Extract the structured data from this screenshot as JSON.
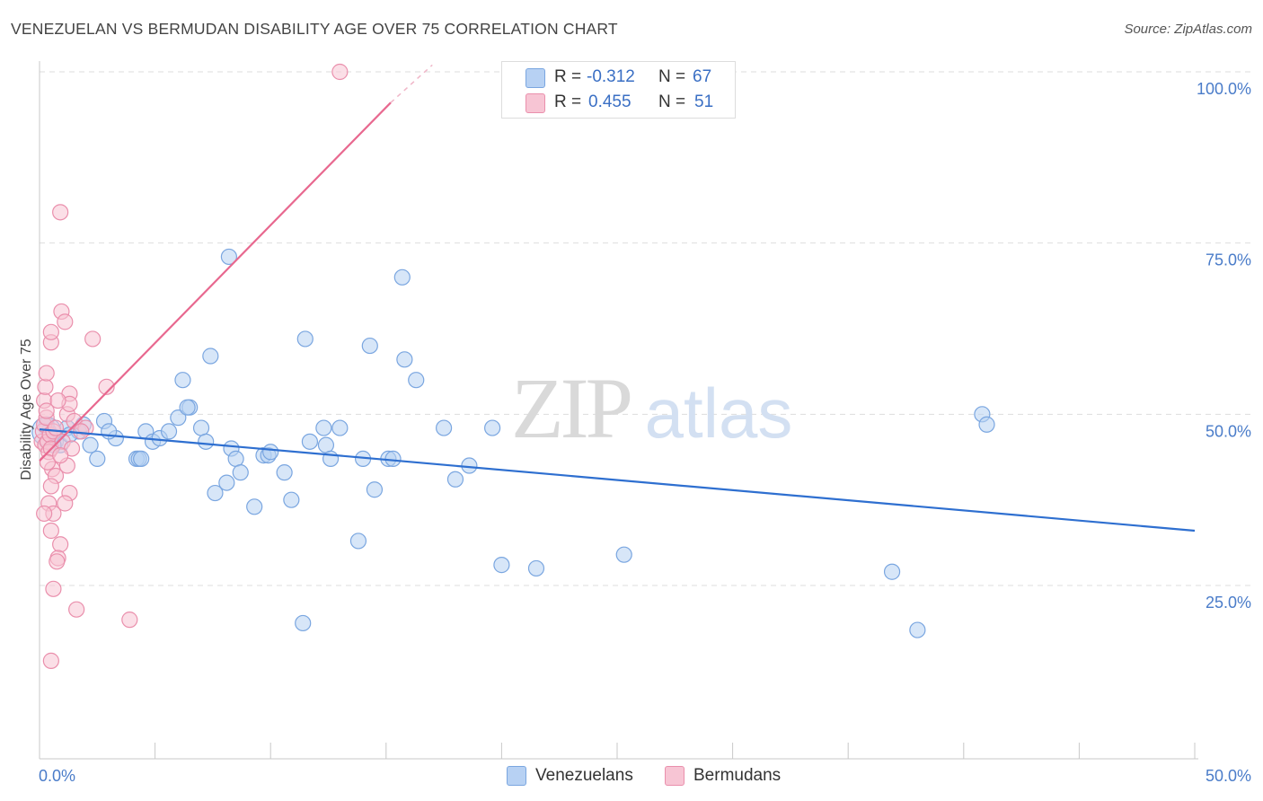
{
  "title": "VENEZUELAN VS BERMUDAN DISABILITY AGE OVER 75 CORRELATION CHART",
  "source": "Source: ZipAtlas.com",
  "watermark": {
    "zip": "ZIP",
    "atlas": "atlas"
  },
  "colors": {
    "blue_fill": "#b7d1f3",
    "blue_stroke": "#7aa6e0",
    "blue_line": "#2e6fd0",
    "pink_fill": "#f7c5d4",
    "pink_stroke": "#ea8fac",
    "pink_line": "#e8688f",
    "axis_label": "#4a7cc9",
    "grid": "#dddddd"
  },
  "legend": {
    "rows": [
      {
        "r_label": "R = ",
        "r_value": "-0.312",
        "n_label": "N = ",
        "n_value": "67",
        "color": "#b7d1f3"
      },
      {
        "r_label": "R = ",
        "r_value": "0.455",
        "n_label": "N = ",
        "n_value": "51",
        "color": "#f7c5d4"
      }
    ]
  },
  "bottom_legend": [
    {
      "label": "Venezuelans",
      "color": "#b7d1f3"
    },
    {
      "label": "Bermudans",
      "color": "#f7c5d4"
    }
  ],
  "chart_data": {
    "type": "scatter",
    "title": "VENEZUELAN VS BERMUDAN DISABILITY AGE OVER 75 CORRELATION CHART",
    "xlabel": "",
    "ylabel": "Disability Age Over 75",
    "xlim": [
      0,
      50
    ],
    "ylim": [
      0,
      105
    ],
    "x_tick_labels": [
      "0.0%",
      "50.0%"
    ],
    "y_ticks": [
      25,
      50,
      75,
      100
    ],
    "y_tick_labels": [
      "25.0%",
      "50.0%",
      "75.0%",
      "100.0%"
    ],
    "grid": true,
    "legend_position": "top-center",
    "series": [
      {
        "name": "Venezuelans",
        "r": -0.312,
        "n": 67,
        "trend": {
          "x0": 0,
          "y0": 47.8,
          "x1": 50,
          "y1": 33.0
        },
        "points": [
          [
            0.4,
            47.5
          ],
          [
            0.7,
            46.0
          ],
          [
            0.9,
            45.5
          ],
          [
            1.2,
            48.0
          ],
          [
            1.7,
            47.5
          ],
          [
            2.2,
            45.5
          ],
          [
            2.8,
            49.0
          ],
          [
            3.3,
            46.5
          ],
          [
            4.2,
            43.5
          ],
          [
            4.3,
            43.5
          ],
          [
            4.4,
            43.5
          ],
          [
            4.6,
            47.5
          ],
          [
            4.9,
            46.0
          ],
          [
            5.2,
            46.5
          ],
          [
            6.0,
            49.5
          ],
          [
            5.6,
            47.5
          ],
          [
            6.2,
            55.0
          ],
          [
            6.5,
            51.0
          ],
          [
            7.0,
            48.0
          ],
          [
            7.2,
            46.0
          ],
          [
            7.4,
            58.5
          ],
          [
            8.1,
            40.0
          ],
          [
            8.3,
            45.0
          ],
          [
            8.5,
            43.5
          ],
          [
            8.7,
            41.5
          ],
          [
            9.3,
            36.5
          ],
          [
            9.7,
            44.0
          ],
          [
            9.9,
            44.0
          ],
          [
            10.0,
            44.5
          ],
          [
            10.6,
            41.5
          ],
          [
            10.9,
            37.5
          ],
          [
            11.4,
            19.5
          ],
          [
            11.5,
            61.0
          ],
          [
            12.3,
            48.0
          ],
          [
            12.4,
            45.5
          ],
          [
            12.6,
            43.5
          ],
          [
            13.0,
            48.0
          ],
          [
            13.8,
            31.5
          ],
          [
            14.0,
            43.5
          ],
          [
            14.3,
            60.0
          ],
          [
            14.5,
            39.0
          ],
          [
            15.1,
            43.5
          ],
          [
            15.3,
            43.5
          ],
          [
            15.7,
            70.0
          ],
          [
            15.8,
            58.0
          ],
          [
            16.3,
            55.0
          ],
          [
            17.5,
            48.0
          ],
          [
            18.0,
            40.5
          ],
          [
            18.6,
            42.5
          ],
          [
            19.6,
            48.0
          ],
          [
            20.0,
            28.0
          ],
          [
            21.5,
            27.5
          ],
          [
            25.3,
            29.5
          ],
          [
            36.9,
            27.0
          ],
          [
            38.0,
            18.5
          ],
          [
            40.8,
            50.0
          ],
          [
            41.0,
            48.5
          ],
          [
            8.2,
            73.0
          ],
          [
            0.6,
            45.5
          ],
          [
            1.3,
            47.0
          ],
          [
            0.3,
            48.5
          ],
          [
            3.0,
            47.5
          ],
          [
            6.4,
            51.0
          ],
          [
            2.5,
            43.5
          ],
          [
            7.6,
            38.5
          ],
          [
            11.7,
            46.0
          ],
          [
            1.9,
            48.5
          ]
        ]
      },
      {
        "name": "Bermudans",
        "r": 0.455,
        "n": 51,
        "trend": {
          "x0": 0,
          "y0": 43.2,
          "x1": 15.2,
          "y1": 95.5,
          "dashed_to": {
            "x": 17.0,
            "y": 101.0
          }
        },
        "points": [
          [
            0.1,
            46.0
          ],
          [
            0.15,
            47.5
          ],
          [
            0.2,
            48.5
          ],
          [
            0.25,
            45.5
          ],
          [
            0.3,
            49.5
          ],
          [
            0.2,
            52.0
          ],
          [
            0.25,
            54.0
          ],
          [
            0.3,
            56.0
          ],
          [
            0.35,
            46.0
          ],
          [
            0.4,
            44.5
          ],
          [
            0.45,
            47.0
          ],
          [
            0.5,
            45.0
          ],
          [
            0.6,
            47.5
          ],
          [
            0.55,
            42.0
          ],
          [
            0.7,
            41.0
          ],
          [
            0.5,
            39.5
          ],
          [
            0.4,
            37.0
          ],
          [
            0.6,
            35.5
          ],
          [
            0.5,
            33.0
          ],
          [
            0.9,
            31.0
          ],
          [
            0.8,
            29.0
          ],
          [
            0.75,
            28.5
          ],
          [
            0.6,
            24.5
          ],
          [
            1.6,
            21.5
          ],
          [
            0.5,
            14.0
          ],
          [
            0.5,
            60.5
          ],
          [
            0.5,
            62.0
          ],
          [
            0.95,
            65.0
          ],
          [
            1.1,
            63.5
          ],
          [
            2.3,
            61.0
          ],
          [
            0.9,
            79.5
          ],
          [
            1.2,
            50.0
          ],
          [
            1.3,
            53.0
          ],
          [
            1.3,
            51.5
          ],
          [
            1.5,
            49.0
          ],
          [
            1.2,
            42.5
          ],
          [
            1.3,
            38.5
          ],
          [
            1.1,
            37.0
          ],
          [
            2.0,
            48.0
          ],
          [
            2.9,
            54.0
          ],
          [
            1.8,
            47.5
          ],
          [
            3.9,
            20.0
          ],
          [
            13.0,
            100.0
          ],
          [
            0.8,
            52.0
          ],
          [
            0.3,
            50.5
          ],
          [
            1.0,
            46.0
          ],
          [
            0.7,
            48.0
          ],
          [
            0.35,
            43.0
          ],
          [
            1.4,
            45.0
          ],
          [
            0.9,
            44.0
          ],
          [
            0.2,
            35.5
          ]
        ]
      }
    ]
  }
}
